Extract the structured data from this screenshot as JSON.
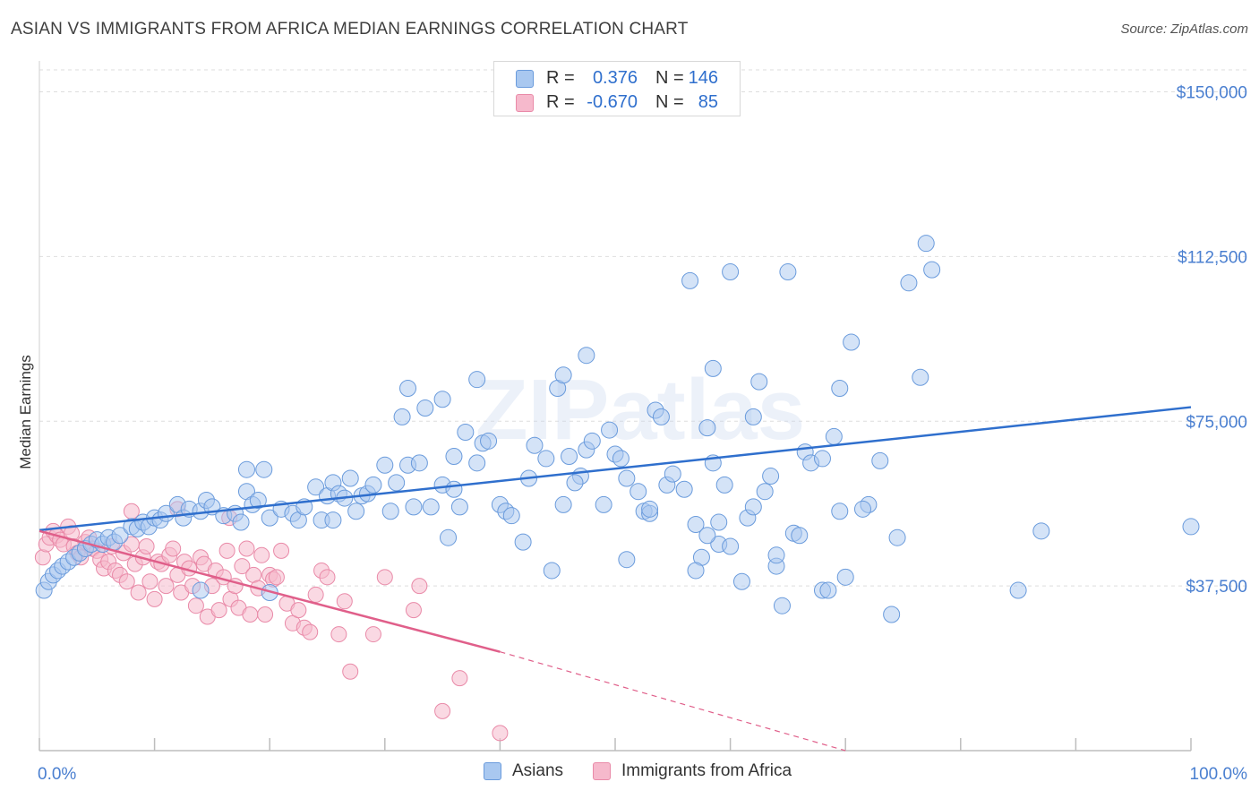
{
  "title": "ASIAN VS IMMIGRANTS FROM AFRICA MEDIAN EARNINGS CORRELATION CHART",
  "source": "Source: ZipAtlas.com",
  "watermark": "ZIPatlas",
  "colors": {
    "asians_fill": "#a9c8f0",
    "asians_stroke": "#6a9bdc",
    "asians_line": "#2f6fcd",
    "africa_fill": "#f6b9cc",
    "africa_stroke": "#e98aa8",
    "africa_line": "#e05f8a",
    "tick_label": "#4a7fd0",
    "grid": "#dedede"
  },
  "legend": {
    "rows": [
      {
        "r_label": "R =",
        "r_value": "0.376",
        "n_label": "N =",
        "n_value": "146"
      },
      {
        "r_label": "R =",
        "r_value": "-0.670",
        "n_label": "N =",
        "n_value": "85"
      }
    ]
  },
  "chart_data": {
    "type": "scatter",
    "title": "ASIAN VS IMMIGRANTS FROM AFRICA MEDIAN EARNINGS CORRELATION CHART",
    "xlabel": "",
    "ylabel": "Median Earnings",
    "xlim": [
      0,
      100
    ],
    "ylim": [
      0,
      155000
    ],
    "x_tick_labels": [
      "0.0%",
      "100.0%"
    ],
    "y_ticks": [
      37500,
      75000,
      112500,
      150000
    ],
    "y_tick_labels": [
      "$37,500",
      "$75,000",
      "$112,500",
      "$150,000"
    ],
    "grid": true,
    "legend_placement": "top-center",
    "series": [
      {
        "name": "Asians",
        "r": 0.376,
        "n": 146,
        "trend": {
          "x": [
            0,
            100
          ],
          "y": [
            50200,
            78200
          ]
        },
        "points": [
          [
            0.4,
            36500
          ],
          [
            0.8,
            38500
          ],
          [
            1.2,
            40000
          ],
          [
            1.6,
            41000
          ],
          [
            2.0,
            42000
          ],
          [
            2.5,
            43000
          ],
          [
            3.0,
            44000
          ],
          [
            3.5,
            45000
          ],
          [
            4.0,
            46000
          ],
          [
            4.5,
            47000
          ],
          [
            5.0,
            48000
          ],
          [
            5.5,
            47000
          ],
          [
            6.0,
            48500
          ],
          [
            6.5,
            47500
          ],
          [
            7.0,
            49000
          ],
          [
            8.0,
            51000
          ],
          [
            8.5,
            50500
          ],
          [
            9.0,
            52000
          ],
          [
            9.5,
            51000
          ],
          [
            10.0,
            53000
          ],
          [
            10.5,
            52500
          ],
          [
            11.0,
            54000
          ],
          [
            12.0,
            56000
          ],
          [
            12.5,
            53000
          ],
          [
            13.0,
            55000
          ],
          [
            14.0,
            54500
          ],
          [
            14.5,
            57000
          ],
          [
            15.0,
            55500
          ],
          [
            16.0,
            53500
          ],
          [
            17.0,
            54000
          ],
          [
            17.5,
            52000
          ],
          [
            18.0,
            59000
          ],
          [
            18.5,
            56000
          ],
          [
            19.0,
            57000
          ],
          [
            20.0,
            53000
          ],
          [
            21.0,
            55000
          ],
          [
            22.0,
            54000
          ],
          [
            22.5,
            52500
          ],
          [
            23.0,
            55500
          ],
          [
            24.0,
            60000
          ],
          [
            24.5,
            52500
          ],
          [
            25.0,
            58000
          ],
          [
            25.5,
            61000
          ],
          [
            26.0,
            58500
          ],
          [
            27.0,
            62000
          ],
          [
            27.5,
            54500
          ],
          [
            28.0,
            58000
          ],
          [
            28.5,
            58500
          ],
          [
            29.0,
            60500
          ],
          [
            30.0,
            65000
          ],
          [
            30.5,
            54500
          ],
          [
            31.0,
            61000
          ],
          [
            32.0,
            65000
          ],
          [
            32.5,
            55500
          ],
          [
            33.0,
            65500
          ],
          [
            34.0,
            55500
          ],
          [
            35.0,
            60500
          ],
          [
            35.5,
            48500
          ],
          [
            36.0,
            59500
          ],
          [
            36.5,
            55500
          ],
          [
            37.0,
            72500
          ],
          [
            38.0,
            65500
          ],
          [
            38.5,
            70000
          ],
          [
            39.0,
            70500
          ],
          [
            40.0,
            56000
          ],
          [
            40.5,
            54500
          ],
          [
            41.0,
            53500
          ],
          [
            42.0,
            47500
          ],
          [
            42.5,
            62000
          ],
          [
            43.0,
            69500
          ],
          [
            44.0,
            66500
          ],
          [
            44.5,
            41000
          ],
          [
            45.0,
            82500
          ],
          [
            45.5,
            85500
          ],
          [
            46.0,
            67000
          ],
          [
            47.0,
            62500
          ],
          [
            47.5,
            68500
          ],
          [
            48.0,
            70500
          ],
          [
            49.0,
            56000
          ],
          [
            50.0,
            67500
          ],
          [
            50.5,
            66500
          ],
          [
            51.0,
            43500
          ],
          [
            52.0,
            59000
          ],
          [
            52.5,
            54500
          ],
          [
            53.0,
            54000
          ],
          [
            53.5,
            77500
          ],
          [
            54.0,
            76000
          ],
          [
            54.5,
            60500
          ],
          [
            55.0,
            63000
          ],
          [
            56.0,
            59500
          ],
          [
            57.0,
            51500
          ],
          [
            57.5,
            44000
          ],
          [
            58.0,
            73500
          ],
          [
            58.5,
            65500
          ],
          [
            59.0,
            47000
          ],
          [
            59.5,
            60500
          ],
          [
            60.0,
            46500
          ],
          [
            61.0,
            38500
          ],
          [
            61.5,
            53000
          ],
          [
            62.0,
            55500
          ],
          [
            62.5,
            84000
          ],
          [
            63.0,
            59000
          ],
          [
            64.0,
            42000
          ],
          [
            64.5,
            33000
          ],
          [
            65.5,
            49500
          ],
          [
            66.0,
            49000
          ],
          [
            66.5,
            68000
          ],
          [
            67.0,
            65500
          ],
          [
            68.0,
            36500
          ],
          [
            68.5,
            36500
          ],
          [
            69.0,
            71500
          ],
          [
            69.5,
            82500
          ],
          [
            70.0,
            39500
          ],
          [
            70.5,
            93000
          ],
          [
            72.0,
            56000
          ],
          [
            74.0,
            31000
          ],
          [
            75.5,
            106500
          ],
          [
            76.5,
            85000
          ],
          [
            77.0,
            115500
          ],
          [
            77.5,
            109500
          ],
          [
            85.0,
            36500
          ],
          [
            87.0,
            50000
          ],
          [
            14.0,
            36500
          ],
          [
            20.0,
            36000
          ],
          [
            18.0,
            64000
          ],
          [
            19.5,
            64000
          ],
          [
            25.5,
            52500
          ],
          [
            26.5,
            57500
          ],
          [
            33.5,
            78000
          ],
          [
            35.0,
            80000
          ],
          [
            31.5,
            76000
          ],
          [
            32.0,
            82500
          ],
          [
            36.0,
            67000
          ],
          [
            38.0,
            84500
          ],
          [
            47.5,
            90000
          ],
          [
            49.5,
            73000
          ],
          [
            51.0,
            62000
          ],
          [
            53.0,
            55000
          ],
          [
            56.5,
            107000
          ],
          [
            58.5,
            87000
          ],
          [
            60.0,
            109000
          ],
          [
            62.0,
            76000
          ],
          [
            63.5,
            62500
          ],
          [
            65.0,
            109000
          ],
          [
            68.0,
            66500
          ],
          [
            69.5,
            54500
          ],
          [
            71.5,
            55000
          ],
          [
            73.0,
            66000
          ],
          [
            74.5,
            48500
          ],
          [
            100.0,
            51000
          ],
          [
            45.5,
            56000
          ],
          [
            46.5,
            61000
          ],
          [
            58.0,
            49000
          ],
          [
            57.0,
            41000
          ],
          [
            59.0,
            52000
          ],
          [
            64.0,
            44500
          ]
        ]
      },
      {
        "name": "Immigrants from Africa",
        "r": -0.67,
        "n": 85,
        "trend": {
          "x": [
            0,
            40
          ],
          "y": [
            50000,
            22500
          ]
        },
        "trend_dashed_extension": {
          "x": [
            40,
            70
          ],
          "y": [
            22500,
            0
          ]
        },
        "points": [
          [
            0.3,
            44000
          ],
          [
            0.6,
            47000
          ],
          [
            0.9,
            48500
          ],
          [
            1.2,
            50000
          ],
          [
            1.5,
            49000
          ],
          [
            1.8,
            48000
          ],
          [
            2.1,
            47000
          ],
          [
            2.5,
            51000
          ],
          [
            2.8,
            49500
          ],
          [
            3.0,
            46500
          ],
          [
            3.3,
            45000
          ],
          [
            3.6,
            44000
          ],
          [
            4.0,
            47500
          ],
          [
            4.3,
            48500
          ],
          [
            4.6,
            46000
          ],
          [
            5.0,
            45500
          ],
          [
            5.3,
            43500
          ],
          [
            5.6,
            41500
          ],
          [
            6.0,
            43000
          ],
          [
            6.3,
            46500
          ],
          [
            6.6,
            41000
          ],
          [
            7.0,
            40000
          ],
          [
            7.3,
            45000
          ],
          [
            7.6,
            38500
          ],
          [
            8.0,
            47000
          ],
          [
            8.3,
            42500
          ],
          [
            8.6,
            36000
          ],
          [
            9.0,
            44000
          ],
          [
            9.3,
            46500
          ],
          [
            9.6,
            38500
          ],
          [
            10.0,
            34500
          ],
          [
            10.3,
            43000
          ],
          [
            10.6,
            42500
          ],
          [
            11.0,
            37500
          ],
          [
            11.3,
            44500
          ],
          [
            11.6,
            46000
          ],
          [
            12.0,
            40000
          ],
          [
            12.3,
            36000
          ],
          [
            12.6,
            43000
          ],
          [
            13.0,
            41500
          ],
          [
            13.3,
            37500
          ],
          [
            13.6,
            33000
          ],
          [
            14.0,
            44000
          ],
          [
            14.3,
            42500
          ],
          [
            14.6,
            30500
          ],
          [
            15.0,
            37500
          ],
          [
            15.3,
            41000
          ],
          [
            15.6,
            32000
          ],
          [
            16.0,
            39500
          ],
          [
            16.3,
            45500
          ],
          [
            16.6,
            34500
          ],
          [
            17.0,
            37500
          ],
          [
            17.3,
            32500
          ],
          [
            17.6,
            42000
          ],
          [
            18.0,
            46000
          ],
          [
            18.3,
            31000
          ],
          [
            18.6,
            40000
          ],
          [
            19.0,
            37000
          ],
          [
            19.3,
            44500
          ],
          [
            19.6,
            31000
          ],
          [
            20.0,
            40000
          ],
          [
            20.3,
            39000
          ],
          [
            20.6,
            39500
          ],
          [
            21.0,
            45500
          ],
          [
            21.5,
            33500
          ],
          [
            22.0,
            29000
          ],
          [
            22.5,
            32000
          ],
          [
            23.0,
            28000
          ],
          [
            23.5,
            27000
          ],
          [
            24.0,
            35500
          ],
          [
            24.5,
            41000
          ],
          [
            25.0,
            39500
          ],
          [
            26.0,
            26500
          ],
          [
            26.5,
            34000
          ],
          [
            27.0,
            18000
          ],
          [
            29.0,
            26500
          ],
          [
            30.0,
            39500
          ],
          [
            32.5,
            32000
          ],
          [
            33.0,
            37500
          ],
          [
            35.0,
            9000
          ],
          [
            36.5,
            16500
          ],
          [
            40.0,
            4000
          ],
          [
            12.0,
            55000
          ],
          [
            8.0,
            54500
          ],
          [
            16.5,
            53000
          ]
        ]
      }
    ]
  },
  "bottom_legend": {
    "items": [
      {
        "label": "Asians"
      },
      {
        "label": "Immigrants from Africa"
      }
    ]
  }
}
